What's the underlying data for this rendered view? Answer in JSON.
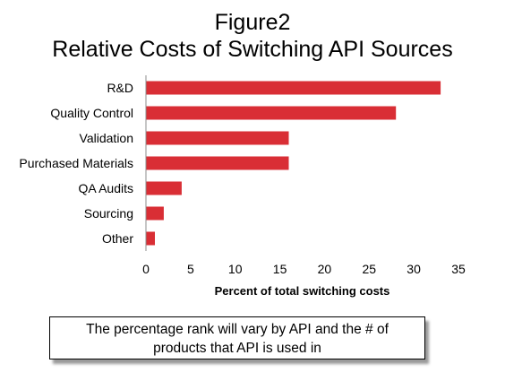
{
  "title": {
    "line1": "Figure2",
    "line2": "Relative Costs of Switching API Sources"
  },
  "chart_data": {
    "type": "bar",
    "orientation": "horizontal",
    "categories": [
      "R&D",
      "Quality Control",
      "Validation",
      "Purchased Materials",
      "QA Audits",
      "Sourcing",
      "Other"
    ],
    "values": [
      33,
      28,
      16,
      16,
      4,
      2,
      1
    ],
    "xlabel": "Percent of total switching costs",
    "ylabel": "",
    "xlim": [
      0,
      35
    ],
    "xticks": [
      0,
      5,
      10,
      15,
      20,
      25,
      30,
      35
    ],
    "grid": false,
    "legend": "none",
    "bar_color": "#d92e35"
  },
  "callout": {
    "line1": "The percentage rank will vary by API and the # of",
    "line2": "products that API is used in"
  }
}
